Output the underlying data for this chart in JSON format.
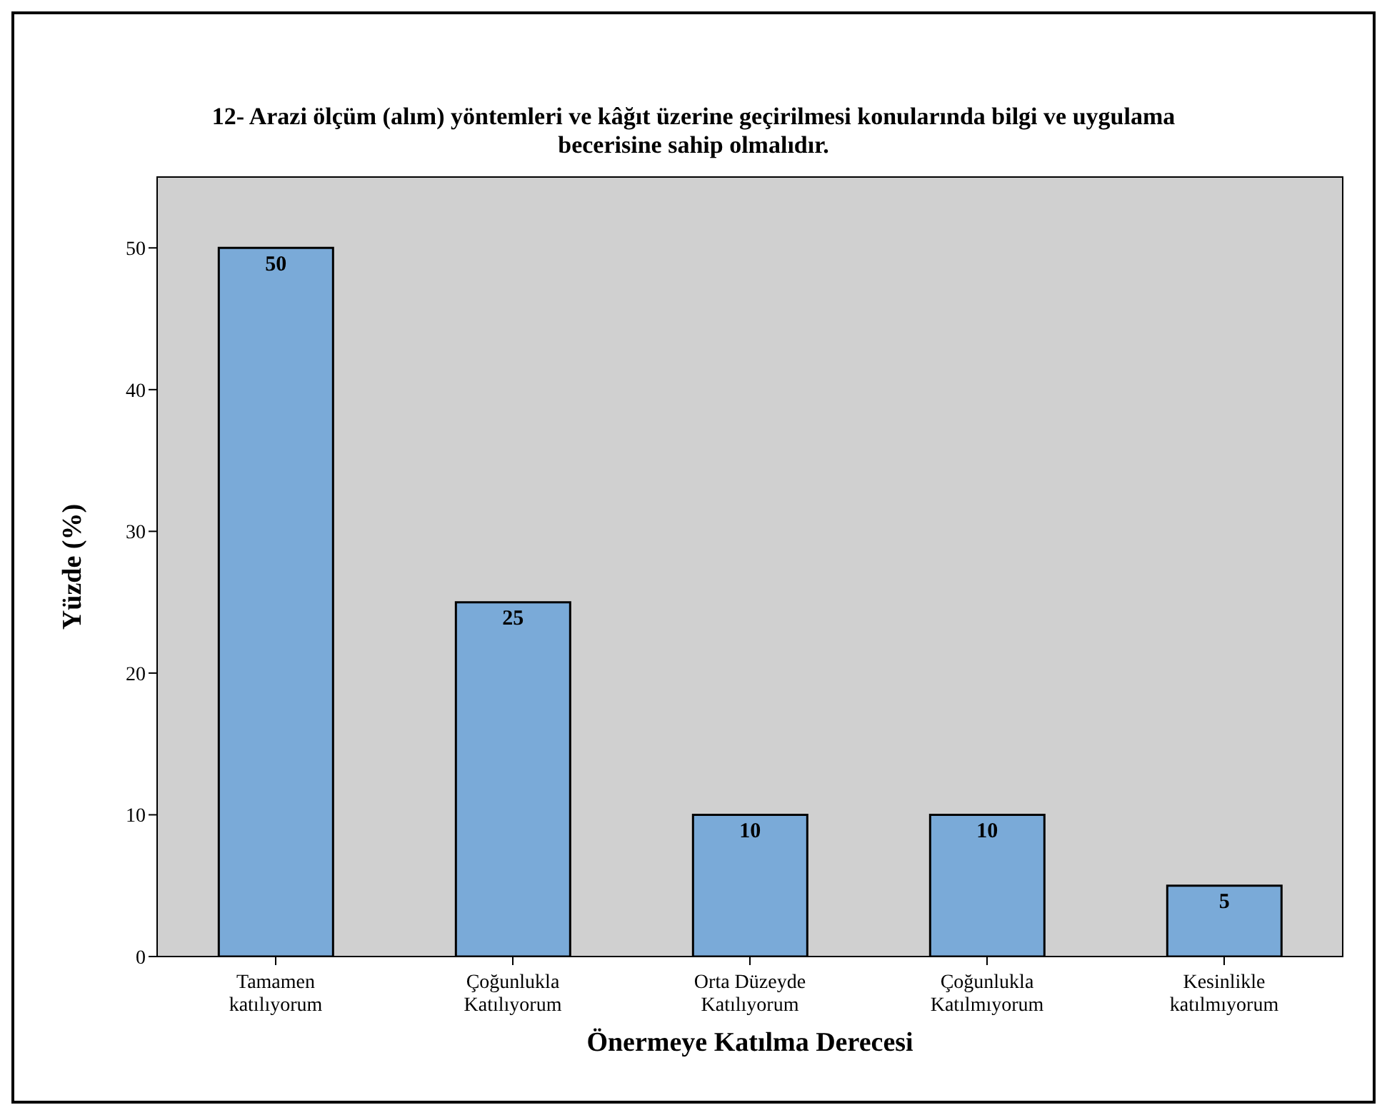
{
  "chart_data": {
    "type": "bar",
    "title": "12- Arazi ölçüm (alım) yöntemleri ve kâğıt üzerine geçirilmesi konularında bilgi ve uygulama becerisine sahip olmalıdır.",
    "xlabel": "Önermeye Katılma Derecesi",
    "ylabel": "Yüzde (%)",
    "categories": [
      "Tamamen katılıyorum",
      "Çoğunlukla Katılıyorum",
      "Orta Düzeyde Katılıyorum",
      "Çoğunlukla Katılmıyorum",
      "Kesinlikle katılmıyorum"
    ],
    "values": [
      50,
      25,
      10,
      10,
      5
    ],
    "color": "#7aaad8",
    "ylim": [
      0,
      55
    ],
    "yticks": [
      0,
      10,
      20,
      30,
      40,
      50
    ],
    "data_labels": true
  }
}
